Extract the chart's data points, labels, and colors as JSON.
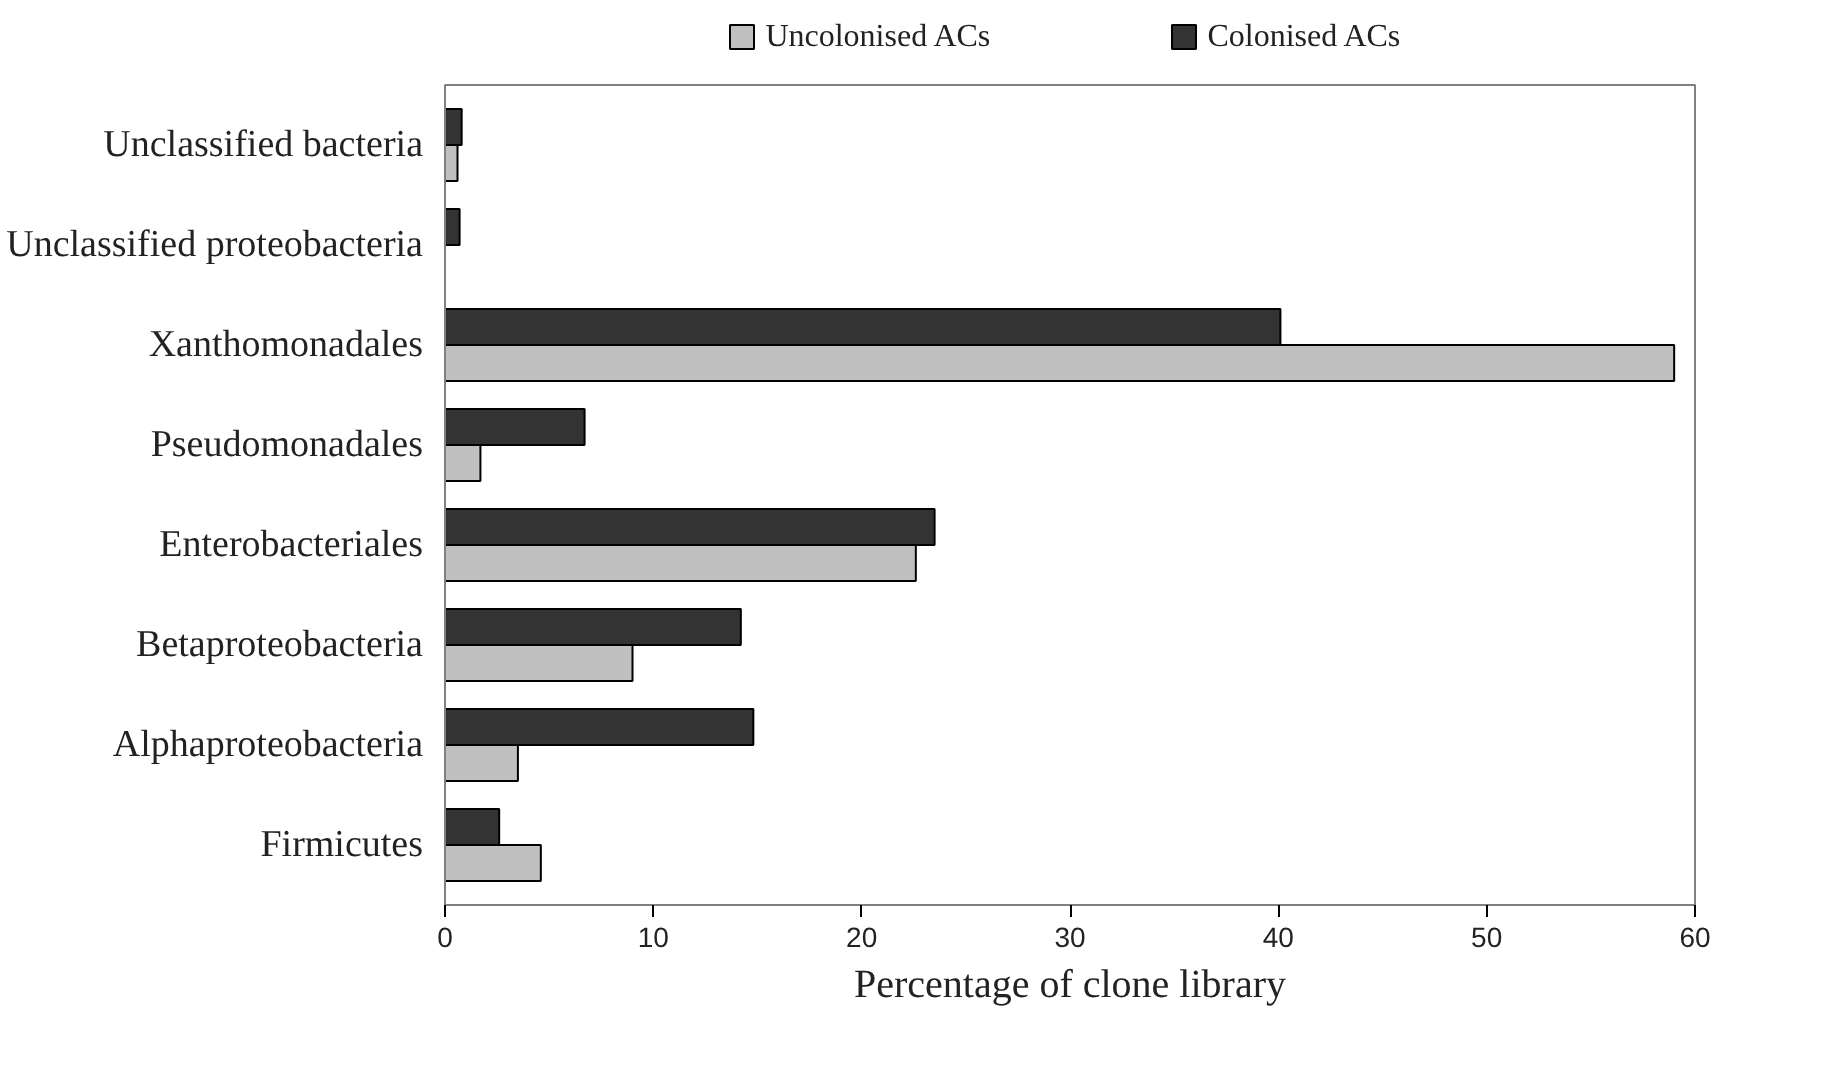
{
  "chart_data": {
    "type": "bar",
    "orientation": "horizontal",
    "xlabel": "Percentage of clone library",
    "categories": [
      "Unclassified bacteria",
      "Unclassified proteobacteria",
      "Xanthomonadales",
      "Pseudomonadales",
      "Enterobacteriales",
      "Betaproteobacteria",
      "Alphaproteobacteria",
      "Firmicutes"
    ],
    "series": [
      {
        "name": "Uncolonised ACs",
        "color": "#c0c0c0",
        "values": [
          0.6,
          0,
          59.0,
          1.7,
          22.6,
          9.0,
          3.5,
          4.6
        ]
      },
      {
        "name": "Colonised ACs",
        "color": "#333333",
        "values": [
          0.8,
          0.7,
          40.1,
          6.7,
          23.5,
          14.2,
          14.8,
          2.6
        ]
      }
    ],
    "xlim": [
      0,
      60
    ],
    "xticks": [
      0,
      10,
      20,
      30,
      40,
      50,
      60
    ],
    "grid": false,
    "legend": "top"
  }
}
